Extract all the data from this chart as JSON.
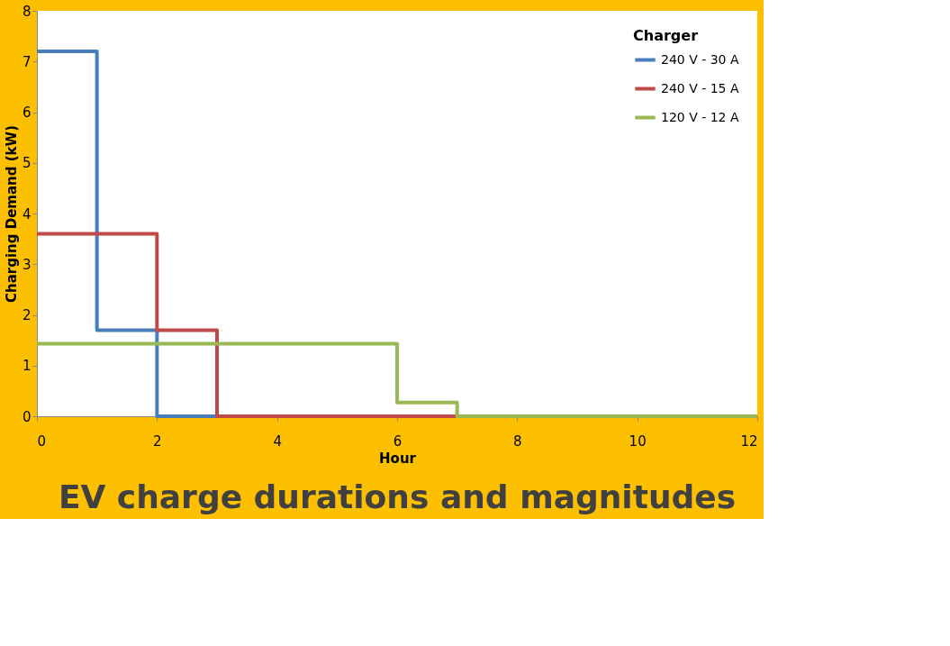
{
  "chart_data": {
    "type": "step",
    "title": "EV charge durations and magnitudes",
    "xlabel": "Hour",
    "ylabel": "Charging Demand (kW)",
    "legend_title": "Charger",
    "legend": "top right",
    "grid": false,
    "series": [
      {
        "name": "240 V - 30 A",
        "color": "#4a7ebb",
        "x": [
          0,
          1,
          2,
          3
        ],
        "values": [
          7.2,
          1.7,
          0,
          0
        ]
      },
      {
        "name": "240 V - 15 A",
        "color": "#be4b48",
        "x": [
          0,
          2,
          3,
          7
        ],
        "values": [
          3.6,
          1.7,
          0,
          0
        ]
      },
      {
        "name": "120 V - 12 A",
        "color": "#98b954",
        "x": [
          0,
          6,
          7,
          12
        ],
        "values": [
          1.43,
          0.27,
          0,
          0
        ]
      }
    ],
    "xlim": [
      0,
      12
    ],
    "xticks": [
      0,
      2,
      4,
      6,
      8,
      10,
      12
    ],
    "ylim": [
      0,
      8
    ],
    "yticks": [
      0,
      1,
      2,
      3,
      4,
      5,
      6,
      7,
      8
    ]
  }
}
